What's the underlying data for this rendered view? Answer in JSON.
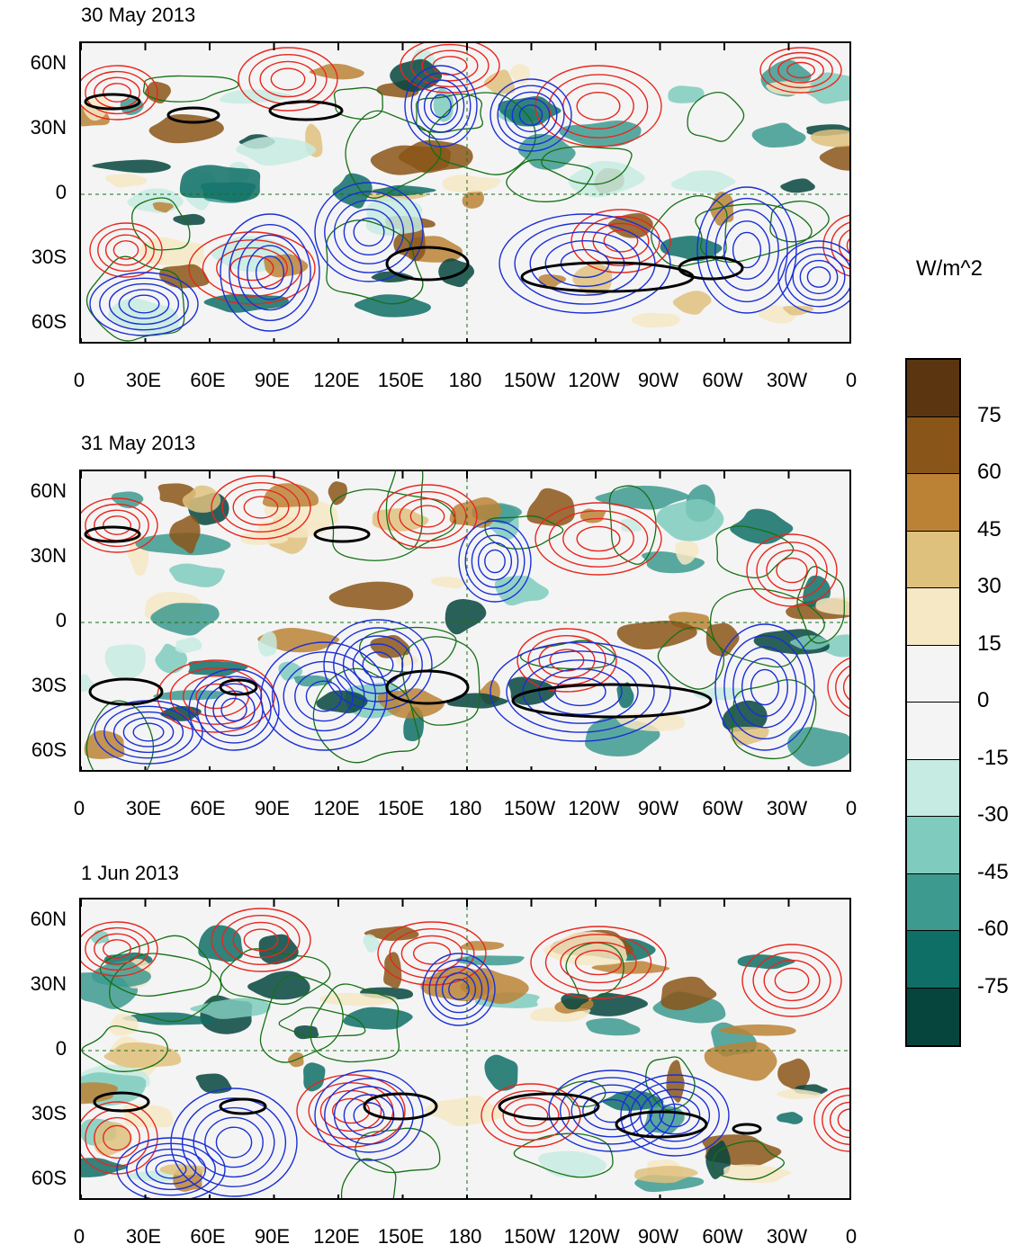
{
  "panels": [
    {
      "title": "30 May 2013"
    },
    {
      "title": "31 May 2013"
    },
    {
      "title": "1 Jun 2013"
    }
  ],
  "y_axis_labels": [
    "60N",
    "30N",
    "0",
    "30S",
    "60S"
  ],
  "x_axis_labels": [
    "0",
    "30E",
    "60E",
    "90E",
    "120E",
    "150E",
    "180",
    "150W",
    "120W",
    "90W",
    "60W",
    "30W",
    "0"
  ],
  "colorbar": {
    "units": "W/m^2",
    "labels": [
      "75",
      "60",
      "45",
      "30",
      "15",
      "0",
      "-15",
      "-30",
      "-45",
      "-60",
      "-75"
    ],
    "colors": [
      "#5a3510",
      "#8a5518",
      "#bb8236",
      "#dfc17e",
      "#f6e8c4",
      "#f4f4f4",
      "#f4f4f4",
      "#c6ebe2",
      "#7fcbbd",
      "#3d9a8f",
      "#0e6f66",
      "#06453e"
    ]
  },
  "legend_colors": {
    "positive_contour": "#e8261e",
    "negative_contour": "#1a2fd6",
    "bold_contour": "#000000",
    "coastline": "#157015"
  }
}
